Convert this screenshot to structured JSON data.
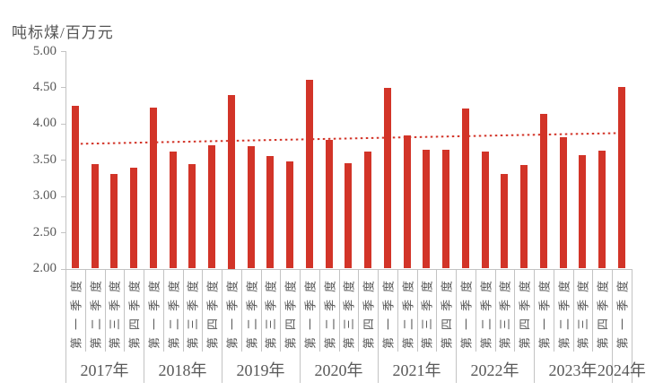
{
  "chart_data": {
    "type": "bar",
    "title": "吨标煤/百万元",
    "ylabel": "吨标煤/百万元",
    "xlabel": "",
    "ylim": [
      2.0,
      5.0
    ],
    "y_tick_step": 0.5,
    "y_tick_labels": [
      "5.00",
      "4.50",
      "4.00",
      "3.50",
      "3.00",
      "2.50",
      "2.00"
    ],
    "grid": false,
    "legend": false,
    "bar_series_name": "吨标煤/百万元",
    "groups": [
      {
        "year": "2017年",
        "quarters": [
          "第一季度",
          "第二季度",
          "第三季度",
          "第四季度"
        ],
        "values": [
          4.24,
          3.44,
          3.3,
          3.39
        ]
      },
      {
        "year": "2018年",
        "quarters": [
          "第一季度",
          "第二季度",
          "第三季度",
          "第四季度"
        ],
        "values": [
          4.22,
          3.61,
          3.44,
          3.7
        ]
      },
      {
        "year": "2019年",
        "quarters": [
          "第一季度",
          "第二季度",
          "第三季度",
          "第四季度"
        ],
        "values": [
          4.4,
          3.69,
          3.55,
          3.48
        ]
      },
      {
        "year": "2020年",
        "quarters": [
          "第一季度",
          "第二季度",
          "第三季度",
          "第四季度"
        ],
        "values": [
          4.61,
          3.78,
          3.45,
          3.62
        ]
      },
      {
        "year": "2021年",
        "quarters": [
          "第一季度",
          "第二季度",
          "第三季度",
          "第四季度"
        ],
        "values": [
          4.49,
          3.84,
          3.64,
          3.64
        ]
      },
      {
        "year": "2022年",
        "quarters": [
          "第一季度",
          "第二季度",
          "第三季度",
          "第四季度"
        ],
        "values": [
          4.21,
          3.61,
          3.31,
          3.43
        ]
      },
      {
        "year": "2023年",
        "quarters": [
          "第一季度",
          "第二季度",
          "第三季度",
          "第四季度"
        ],
        "values": [
          4.13,
          3.81,
          3.57,
          3.63
        ]
      },
      {
        "year": "2024年",
        "quarters": [
          "第一季度"
        ],
        "values": [
          4.51
        ]
      }
    ],
    "trendline": {
      "type": "linear",
      "style": "dotted",
      "start_value": 3.72,
      "end_value": 3.87
    },
    "colors": {
      "bar": "#d23428",
      "trendline": "#d23428",
      "axis": "#c3c3c3",
      "text": "#595959",
      "title": "#555555"
    }
  }
}
